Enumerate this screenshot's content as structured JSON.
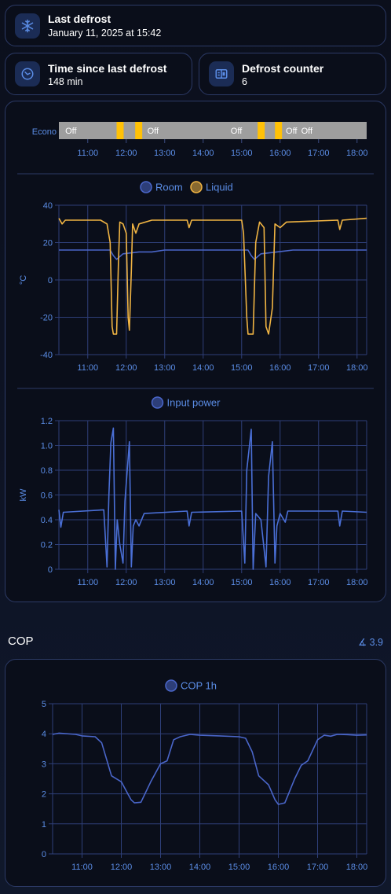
{
  "tiles": {
    "last_defrost": {
      "title": "Last defrost",
      "value": "January 11, 2025 at 15:42",
      "icon": "snowflake-icon"
    },
    "time_since": {
      "title": "Time since last defrost",
      "value": "148 min",
      "icon": "timer-icon"
    },
    "counter": {
      "title": "Defrost counter",
      "value": "6",
      "icon": "counter-icon"
    }
  },
  "x_ticks": [
    "11:00",
    "12:00",
    "13:00",
    "14:00",
    "15:00",
    "16:00",
    "17:00",
    "18:00"
  ],
  "timeline": {
    "label": "Econo",
    "segment_labels": [
      "Off",
      "Off",
      "Off",
      "Off",
      "Off"
    ],
    "colors": {
      "off": "#9e9e9e",
      "on": "#ffc107"
    }
  },
  "chart_temp": {
    "legend": [
      "Room",
      "Liquid"
    ],
    "ylabel": "°C",
    "yticks": [
      "40",
      "20",
      "0",
      "-20",
      "-40"
    ]
  },
  "chart_power": {
    "legend": [
      "Input power"
    ],
    "ylabel": "kW",
    "yticks": [
      "1.2",
      "1.0",
      "0.8",
      "0.6",
      "0.4",
      "0.2",
      "0"
    ]
  },
  "cop_section": {
    "title": "COP",
    "badge": "∡ 3.9"
  },
  "chart_cop": {
    "legend": [
      "COP 1h"
    ],
    "yticks": [
      "5",
      "4",
      "3",
      "2",
      "1",
      "0"
    ]
  },
  "chart_data": [
    {
      "type": "timeline",
      "x_range": [
        "10:15",
        "18:15"
      ],
      "on_intervals": [
        [
          "11:45",
          "11:56"
        ],
        [
          "12:14",
          "12:25"
        ],
        [
          "15:25",
          "15:36"
        ],
        [
          "15:52",
          "16:03"
        ]
      ]
    },
    {
      "type": "line",
      "x_range": [
        "10:15",
        "18:15"
      ],
      "ylim": [
        -40,
        40
      ],
      "series": [
        {
          "name": "Room",
          "color": "#4a66c9",
          "points": [
            [
              "10:15",
              16
            ],
            [
              "11:35",
              16
            ],
            [
              "11:40",
              13
            ],
            [
              "11:45",
              11
            ],
            [
              "11:55",
              14
            ],
            [
              "12:20",
              15
            ],
            [
              "12:40",
              15
            ],
            [
              "13:00",
              16
            ],
            [
              "15:10",
              16
            ],
            [
              "15:15",
              13
            ],
            [
              "15:20",
              11
            ],
            [
              "15:30",
              14
            ],
            [
              "15:55",
              15
            ],
            [
              "16:20",
              16
            ],
            [
              "18:15",
              16
            ]
          ]
        },
        {
          "name": "Liquid",
          "color": "#f0b443",
          "points": [
            [
              "10:15",
              33
            ],
            [
              "10:20",
              30
            ],
            [
              "10:25",
              32
            ],
            [
              "11:20",
              32
            ],
            [
              "11:30",
              30
            ],
            [
              "11:35",
              20
            ],
            [
              "11:38",
              -25
            ],
            [
              "11:40",
              -29
            ],
            [
              "11:45",
              -29
            ],
            [
              "11:48",
              10
            ],
            [
              "11:50",
              31
            ],
            [
              "11:55",
              30
            ],
            [
              "12:00",
              25
            ],
            [
              "12:03",
              -20
            ],
            [
              "12:05",
              -27
            ],
            [
              "12:08",
              5
            ],
            [
              "12:10",
              30
            ],
            [
              "12:15",
              25
            ],
            [
              "12:20",
              30
            ],
            [
              "12:40",
              32
            ],
            [
              "13:35",
              32
            ],
            [
              "13:38",
              28
            ],
            [
              "13:42",
              32
            ],
            [
              "15:00",
              32
            ],
            [
              "15:03",
              25
            ],
            [
              "15:08",
              -20
            ],
            [
              "15:10",
              -29
            ],
            [
              "15:18",
              -29
            ],
            [
              "15:22",
              20
            ],
            [
              "15:28",
              31
            ],
            [
              "15:35",
              28
            ],
            [
              "15:38",
              -25
            ],
            [
              "15:42",
              -29
            ],
            [
              "15:48",
              -15
            ],
            [
              "15:52",
              30
            ],
            [
              "16:00",
              28
            ],
            [
              "16:10",
              31
            ],
            [
              "17:30",
              32
            ],
            [
              "17:33",
              27
            ],
            [
              "17:37",
              32
            ],
            [
              "18:15",
              33
            ]
          ]
        }
      ]
    },
    {
      "type": "line",
      "x_range": [
        "10:15",
        "18:15"
      ],
      "ylim": [
        0,
        1.2
      ],
      "series": [
        {
          "name": "Input power",
          "color": "#4a6fd6",
          "points": [
            [
              "10:15",
              0.48
            ],
            [
              "10:18",
              0.34
            ],
            [
              "10:22",
              0.46
            ],
            [
              "11:25",
              0.48
            ],
            [
              "11:30",
              0.02
            ],
            [
              "11:33",
              0.6
            ],
            [
              "11:36",
              1.02
            ],
            [
              "11:40",
              1.14
            ],
            [
              "11:43",
              0.0
            ],
            [
              "11:46",
              0.4
            ],
            [
              "11:50",
              0.2
            ],
            [
              "11:55",
              0.05
            ],
            [
              "11:58",
              0.55
            ],
            [
              "12:05",
              1.03
            ],
            [
              "12:08",
              0.02
            ],
            [
              "12:11",
              0.35
            ],
            [
              "12:15",
              0.4
            ],
            [
              "12:20",
              0.35
            ],
            [
              "12:28",
              0.45
            ],
            [
              "13:35",
              0.47
            ],
            [
              "13:38",
              0.35
            ],
            [
              "13:42",
              0.46
            ],
            [
              "15:00",
              0.47
            ],
            [
              "15:05",
              0.05
            ],
            [
              "15:08",
              0.8
            ],
            [
              "15:15",
              1.13
            ],
            [
              "15:18",
              0.0
            ],
            [
              "15:22",
              0.45
            ],
            [
              "15:30",
              0.4
            ],
            [
              "15:38",
              0.02
            ],
            [
              "15:42",
              0.75
            ],
            [
              "15:48",
              1.03
            ],
            [
              "15:52",
              0.05
            ],
            [
              "15:55",
              0.35
            ],
            [
              "16:00",
              0.45
            ],
            [
              "16:08",
              0.38
            ],
            [
              "16:12",
              0.47
            ],
            [
              "17:30",
              0.47
            ],
            [
              "17:33",
              0.35
            ],
            [
              "17:37",
              0.47
            ],
            [
              "18:15",
              0.46
            ]
          ]
        }
      ]
    },
    {
      "type": "line",
      "x_range": [
        "10:15",
        "18:15"
      ],
      "ylim": [
        0,
        5
      ],
      "series": [
        {
          "name": "COP 1h",
          "color": "#4a66c9",
          "points": [
            [
              "10:15",
              3.98
            ],
            [
              "10:25",
              4.02
            ],
            [
              "10:50",
              3.98
            ],
            [
              "11:00",
              3.93
            ],
            [
              "11:20",
              3.9
            ],
            [
              "11:30",
              3.7
            ],
            [
              "11:45",
              2.6
            ],
            [
              "12:00",
              2.4
            ],
            [
              "12:10",
              2.0
            ],
            [
              "12:15",
              1.8
            ],
            [
              "12:20",
              1.7
            ],
            [
              "12:30",
              1.72
            ],
            [
              "12:45",
              2.4
            ],
            [
              "13:00",
              3.0
            ],
            [
              "13:10",
              3.1
            ],
            [
              "13:20",
              3.8
            ],
            [
              "13:30",
              3.9
            ],
            [
              "13:45",
              3.98
            ],
            [
              "14:00",
              3.95
            ],
            [
              "14:30",
              3.93
            ],
            [
              "15:00",
              3.9
            ],
            [
              "15:10",
              3.85
            ],
            [
              "15:20",
              3.4
            ],
            [
              "15:30",
              2.6
            ],
            [
              "15:45",
              2.3
            ],
            [
              "15:55",
              1.8
            ],
            [
              "16:00",
              1.65
            ],
            [
              "16:10",
              1.7
            ],
            [
              "16:25",
              2.5
            ],
            [
              "16:35",
              2.95
            ],
            [
              "16:45",
              3.1
            ],
            [
              "17:00",
              3.8
            ],
            [
              "17:10",
              3.95
            ],
            [
              "17:20",
              3.92
            ],
            [
              "17:30",
              3.98
            ],
            [
              "17:45",
              3.97
            ],
            [
              "18:00",
              3.95
            ],
            [
              "18:15",
              3.96
            ]
          ]
        }
      ]
    }
  ]
}
